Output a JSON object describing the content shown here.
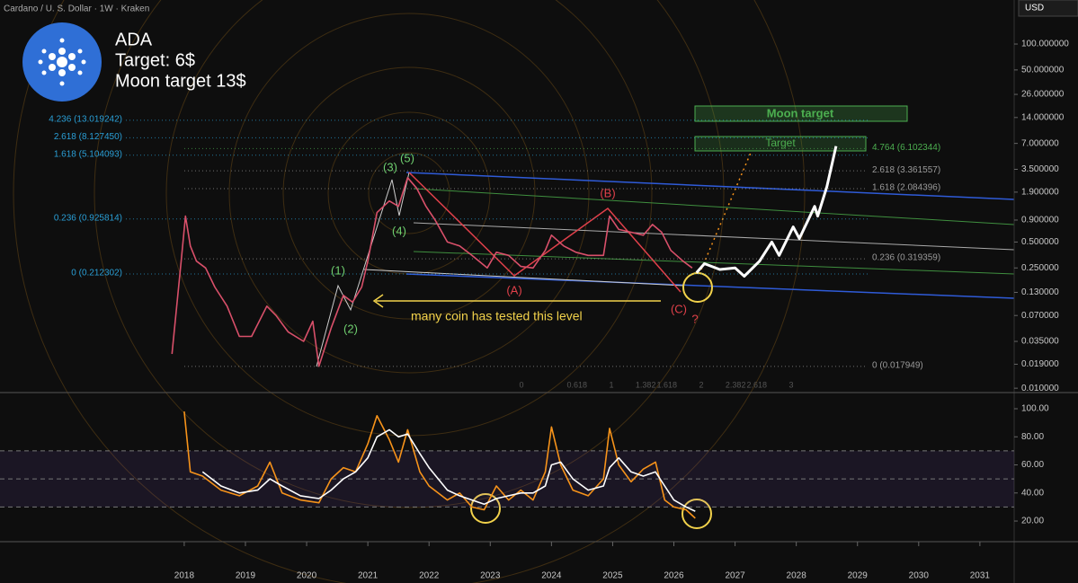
{
  "header": {
    "symbol": "Cardano / U. S. Dollar · 1W · Kraken",
    "currency": "USD"
  },
  "idea": {
    "ticker": "ADA",
    "target": "Target: 6$",
    "moon_target": "Moon target 13$"
  },
  "chart_data": [
    {
      "type": "line",
      "log_scale": true,
      "grid": false,
      "x": [
        2017.8,
        2017.95,
        2018.02,
        2018.1,
        2018.2,
        2018.35,
        2018.5,
        2018.7,
        2018.9,
        2019.1,
        2019.35,
        2019.5,
        2019.7,
        2019.95,
        2020.1,
        2020.2,
        2020.4,
        2020.6,
        2020.75,
        2020.9,
        2021.0,
        2021.15,
        2021.35,
        2021.5,
        2021.65,
        2021.8,
        2021.95,
        2022.1,
        2022.3,
        2022.5,
        2022.7,
        2022.95,
        2023.1,
        2023.3,
        2023.5,
        2023.7,
        2023.9,
        2024.0,
        2024.2,
        2024.4,
        2024.6,
        2024.85,
        2024.95,
        2025.1,
        2025.3,
        2025.5,
        2025.65,
        2025.8,
        2025.95,
        2026.15,
        2026.3,
        2026.37,
        2026.5,
        2026.75,
        2027.0,
        2027.15,
        2027.4,
        2027.6,
        2027.72,
        2027.95,
        2028.05,
        2028.3,
        2028.35,
        2028.5,
        2028.65
      ],
      "series": [
        {
          "color": "#d9506a",
          "values": [
            0.025,
            0.3,
            1.0,
            0.45,
            0.3,
            0.25,
            0.15,
            0.09,
            0.04,
            0.04,
            0.09,
            0.07,
            0.045,
            0.035,
            0.06,
            0.018,
            0.05,
            0.12,
            0.1,
            0.15,
            0.3,
            1.1,
            1.5,
            1.3,
            2.8,
            2.1,
            1.3,
            0.9,
            0.5,
            0.45,
            0.35,
            0.25,
            0.38,
            0.35,
            0.26,
            0.25,
            0.4,
            0.6,
            0.45,
            0.38,
            0.35,
            0.35,
            1.0,
            0.7,
            0.65,
            0.6,
            0.8,
            0.65,
            0.4,
            0.3,
            0.25,
            null,
            null,
            null,
            null,
            null,
            null,
            null,
            null,
            null,
            null,
            null,
            null,
            null,
            null
          ]
        },
        {
          "color": "#ffffff",
          "values": [
            null,
            null,
            null,
            null,
            null,
            null,
            null,
            null,
            null,
            null,
            null,
            null,
            null,
            null,
            null,
            null,
            null,
            null,
            null,
            null,
            null,
            null,
            null,
            null,
            null,
            null,
            null,
            null,
            null,
            null,
            null,
            null,
            null,
            null,
            null,
            null,
            null,
            null,
            null,
            null,
            null,
            null,
            null,
            null,
            null,
            null,
            null,
            null,
            null,
            null,
            null,
            0.22,
            0.28,
            0.24,
            0.25,
            0.2,
            0.3,
            0.5,
            0.35,
            0.75,
            0.55,
            1.3,
            1.0,
            2.2,
            6.5
          ]
        }
      ],
      "xlim": [
        2014.99,
        2031.56
      ],
      "xticks": [
        2018,
        2019,
        2020,
        2021,
        2022,
        2023,
        2024,
        2025,
        2026,
        2027,
        2028,
        2029,
        2030,
        2031
      ],
      "ylim": [
        0.0089,
        325
      ],
      "yticks": [
        {
          "value": 100,
          "label": "100.000000"
        },
        {
          "value": 50,
          "label": "50.000000"
        },
        {
          "value": 26,
          "label": "26.000000"
        },
        {
          "value": 14,
          "label": "14.000000"
        },
        {
          "value": 7,
          "label": "7.000000"
        },
        {
          "value": 3.5,
          "label": "3.500000"
        },
        {
          "value": 1.9,
          "label": "1.900000"
        },
        {
          "value": 0.9,
          "label": "0.900000"
        },
        {
          "value": 0.5,
          "label": "0.500000"
        },
        {
          "value": 0.25,
          "label": "0.250000"
        },
        {
          "value": 0.13,
          "label": "0.130000"
        },
        {
          "value": 0.07,
          "label": "0.070000"
        },
        {
          "value": 0.035,
          "label": "0.035000"
        },
        {
          "value": 0.019,
          "label": "0.019000"
        },
        {
          "value": 0.01,
          "label": "0.010000"
        }
      ],
      "fib_left": [
        {
          "value": 13.019242,
          "label": "4.236 (13.019242)"
        },
        {
          "value": 8.12745,
          "label": "2.618 (8.127450)"
        },
        {
          "value": 5.104093,
          "label": "1.618 (5.104093)"
        },
        {
          "value": 0.925814,
          "label": "0.236 (0.925814)"
        },
        {
          "value": 0.212302,
          "label": "0 (0.212302)"
        }
      ],
      "fib_right": [
        {
          "value": 6.102344,
          "label": "4.764 (6.102344)"
        },
        {
          "value": 3.361557,
          "label": "2.618 (3.361557)"
        },
        {
          "value": 2.084396,
          "label": "1.618 (2.084396)"
        },
        {
          "value": 0.319359,
          "label": "0.236 (0.319359)"
        },
        {
          "value": 0.017949,
          "label": "0 (0.017949)"
        }
      ],
      "time_fib": [
        0,
        0.618,
        1,
        1.382,
        1.618,
        2,
        2.382,
        2.618,
        3
      ],
      "wave_labels": [
        "(1)",
        "(2)",
        "(3)",
        "(4)",
        "(5)",
        "(A)",
        "(B)",
        "(C)",
        "?"
      ],
      "note": "many coin has tested this level",
      "targets": [
        "Moon target",
        "Target"
      ]
    },
    {
      "type": "line",
      "log_scale": false,
      "x": [
        2018.0,
        2018.1,
        2018.3,
        2018.6,
        2018.9,
        2019.2,
        2019.4,
        2019.6,
        2019.9,
        2020.2,
        2020.4,
        2020.6,
        2020.8,
        2021.0,
        2021.15,
        2021.35,
        2021.5,
        2021.65,
        2021.85,
        2022.0,
        2022.3,
        2022.5,
        2022.7,
        2022.9,
        2023.1,
        2023.3,
        2023.5,
        2023.7,
        2023.9,
        2024.0,
        2024.15,
        2024.35,
        2024.6,
        2024.85,
        2024.95,
        2025.1,
        2025.3,
        2025.5,
        2025.7,
        2025.85,
        2026.0,
        2026.2,
        2026.35
      ],
      "series": [
        {
          "color": "#f7931a",
          "values": [
            98,
            55,
            52,
            42,
            38,
            45,
            62,
            40,
            35,
            33,
            50,
            58,
            55,
            75,
            95,
            78,
            62,
            85,
            55,
            45,
            35,
            40,
            30,
            28,
            45,
            35,
            42,
            35,
            55,
            87,
            60,
            42,
            38,
            50,
            86,
            60,
            48,
            57,
            62,
            35,
            30,
            28,
            22
          ]
        },
        {
          "color": "#ffffff",
          "values": [
            null,
            null,
            55,
            45,
            40,
            42,
            50,
            45,
            38,
            36,
            42,
            50,
            55,
            65,
            80,
            85,
            80,
            82,
            68,
            58,
            42,
            38,
            35,
            32,
            36,
            38,
            40,
            40,
            45,
            60,
            62,
            50,
            42,
            45,
            58,
            65,
            55,
            52,
            55,
            45,
            35,
            30,
            27
          ]
        }
      ],
      "xlim": [
        2014.99,
        2031.56
      ],
      "ylim": [
        5.3,
        109.6
      ],
      "yticks": [
        {
          "value": 100,
          "label": "100.00"
        },
        {
          "value": 80,
          "label": "80.00"
        },
        {
          "value": 60,
          "label": "60.00"
        },
        {
          "value": 40,
          "label": "40.00"
        },
        {
          "value": 20,
          "label": "20.00"
        }
      ],
      "levels": [
        70,
        50,
        30
      ]
    }
  ]
}
